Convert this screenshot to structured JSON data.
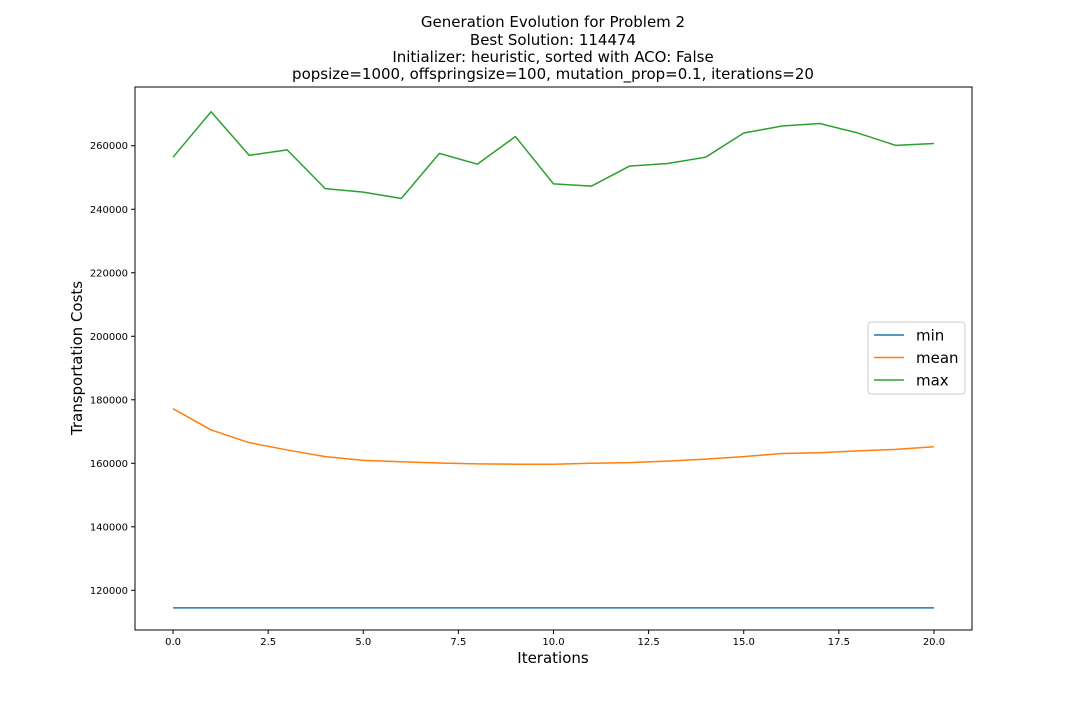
{
  "chart_data": {
    "type": "line",
    "title": [
      "Generation Evolution for Problem 2",
      "Best Solution: 114474",
      "Initializer: heuristic, sorted with ACO: False",
      "popsize=1000, offspringsize=100, mutation_prop=0.1, iterations=20"
    ],
    "xlabel": "Iterations",
    "ylabel": "Transportation Costs",
    "xlim": [
      -1.0,
      21.0
    ],
    "ylim": [
      107500,
      278500
    ],
    "xticks": [
      0.0,
      2.5,
      5.0,
      7.5,
      10.0,
      12.5,
      15.0,
      17.5,
      20.0
    ],
    "xtick_labels": [
      "0.0",
      "2.5",
      "5.0",
      "7.5",
      "10.0",
      "12.5",
      "15.0",
      "17.5",
      "20.0"
    ],
    "yticks": [
      120000,
      140000,
      160000,
      180000,
      200000,
      220000,
      240000,
      260000
    ],
    "ytick_labels": [
      "120000",
      "140000",
      "160000",
      "180000",
      "200000",
      "220000",
      "240000",
      "260000"
    ],
    "grid": false,
    "legend_position": "center-right",
    "x": [
      0,
      1,
      2,
      3,
      4,
      5,
      6,
      7,
      8,
      9,
      10,
      11,
      12,
      13,
      14,
      15,
      16,
      17,
      18,
      19,
      20
    ],
    "series": [
      {
        "name": "min",
        "color": "#1f77b4",
        "values": [
          114474,
          114474,
          114474,
          114474,
          114474,
          114474,
          114474,
          114474,
          114474,
          114474,
          114474,
          114474,
          114474,
          114474,
          114474,
          114474,
          114474,
          114474,
          114474,
          114474,
          114474
        ]
      },
      {
        "name": "mean",
        "color": "#ff7f0e",
        "values": [
          177200,
          170500,
          166500,
          164200,
          162100,
          160900,
          160500,
          160100,
          159800,
          159700,
          159700,
          160000,
          160200,
          160700,
          161300,
          162100,
          163100,
          163300,
          163900,
          164400,
          165200
        ]
      },
      {
        "name": "max",
        "color": "#2ca02c",
        "values": [
          256400,
          270700,
          257000,
          258700,
          246500,
          245400,
          243400,
          257600,
          254200,
          262900,
          248000,
          247300,
          253600,
          254400,
          256400,
          264000,
          266200,
          267000,
          264000,
          260100,
          260700
        ]
      }
    ]
  }
}
